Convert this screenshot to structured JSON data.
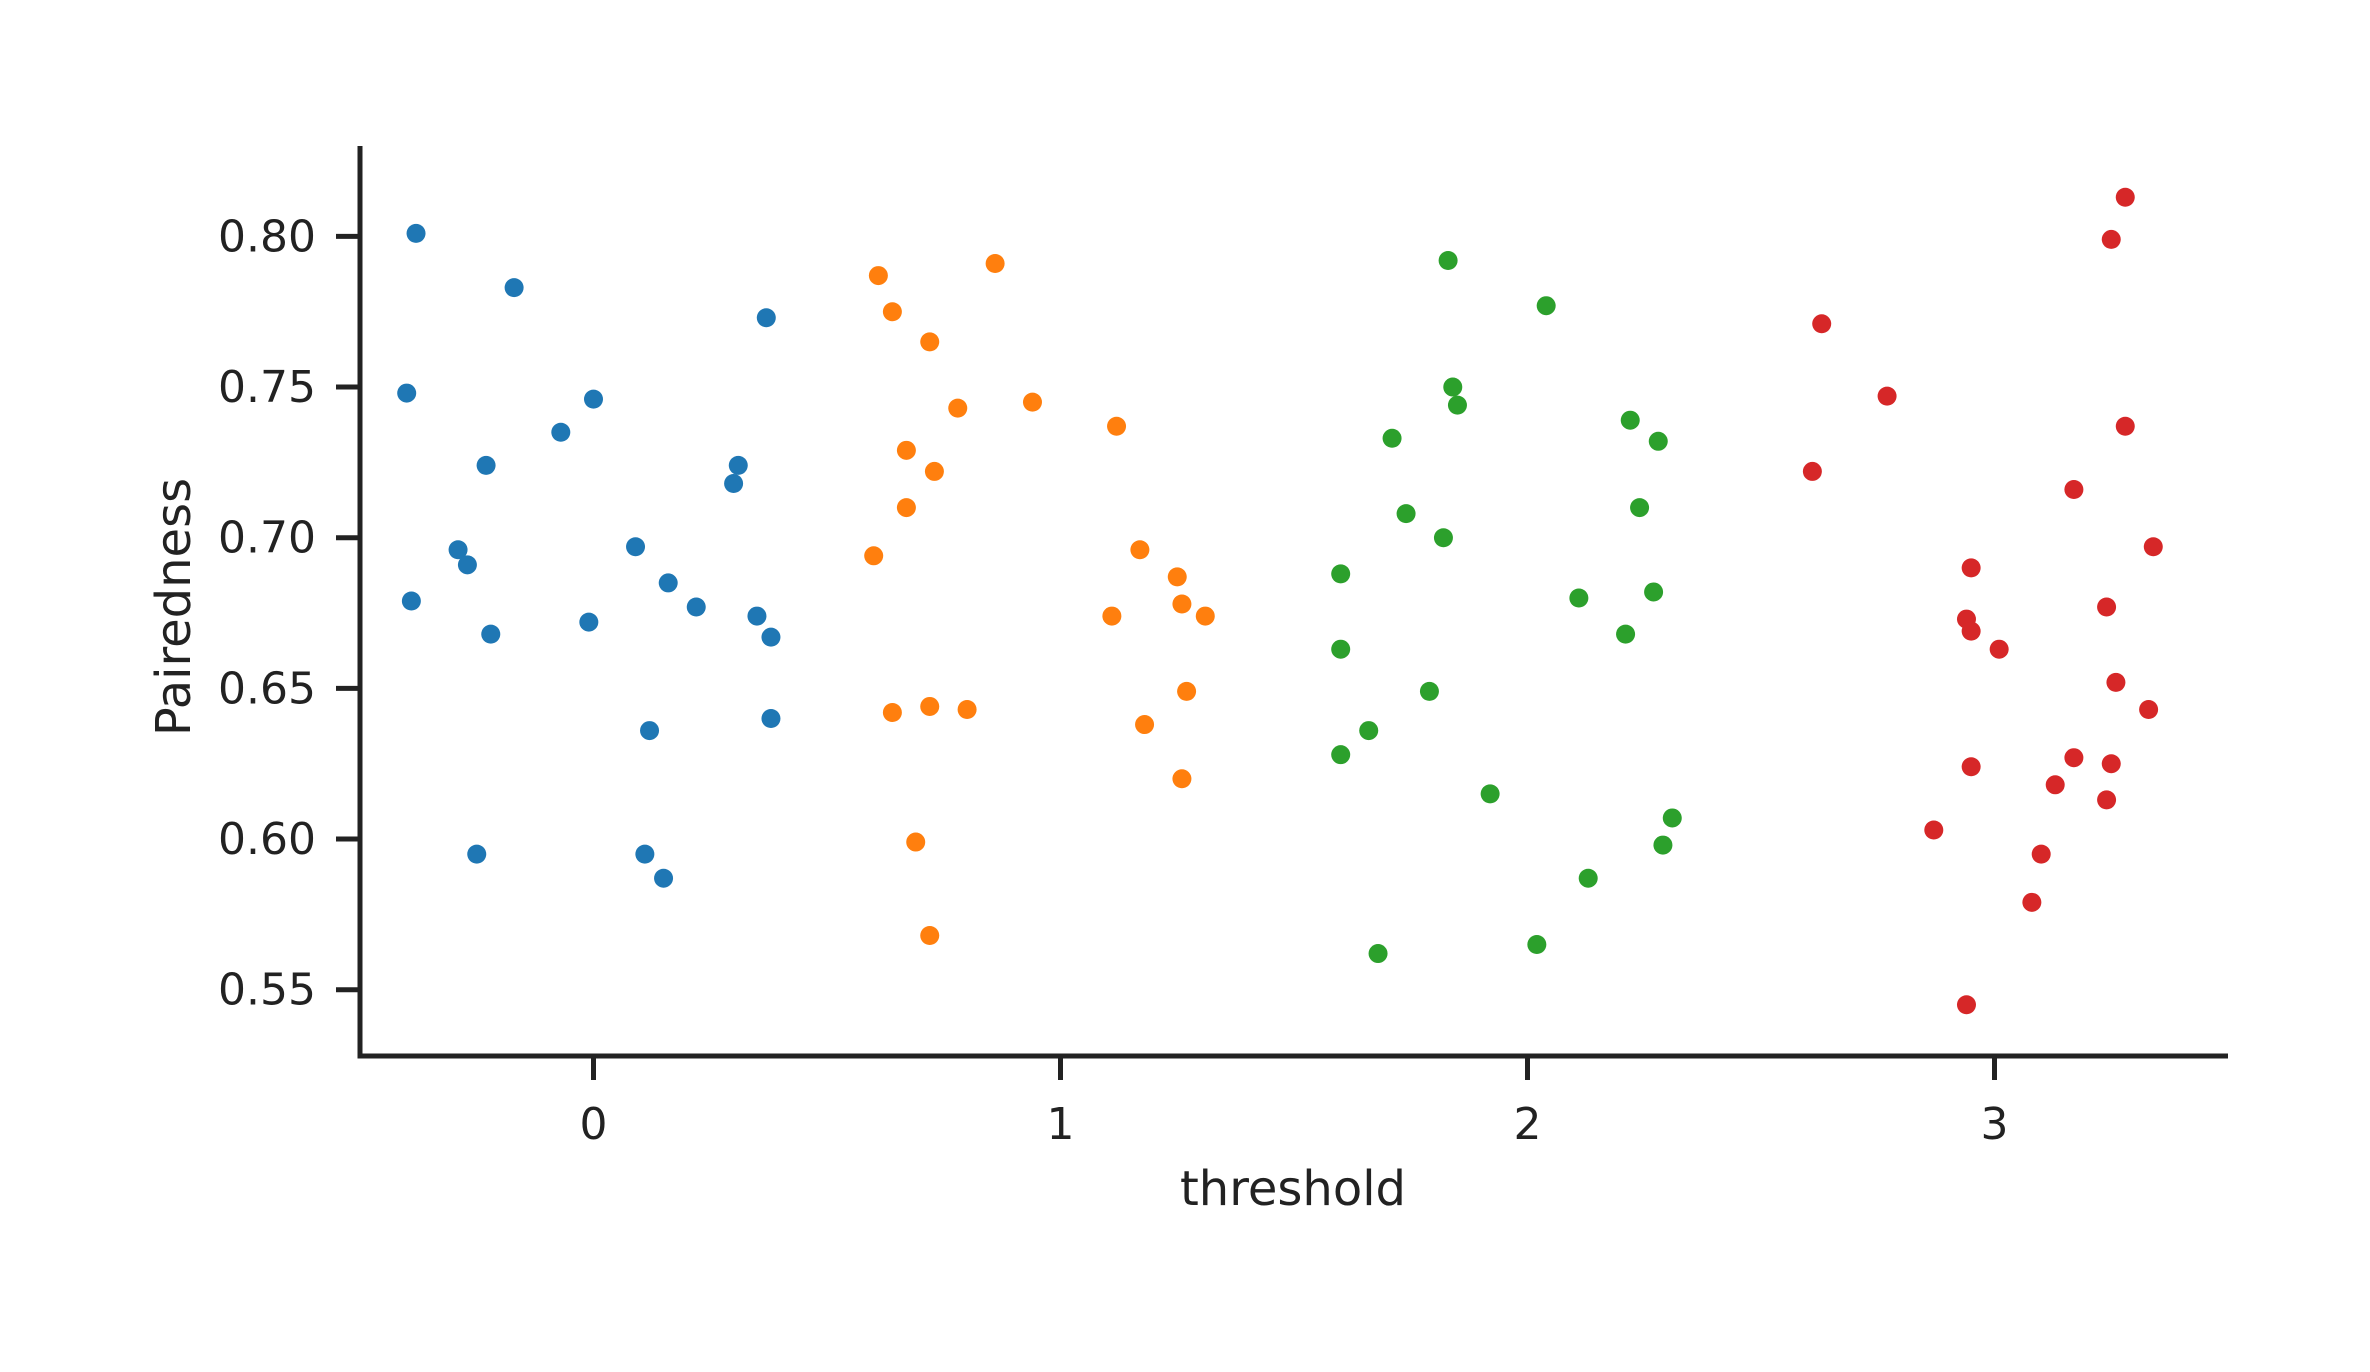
{
  "chart_data": {
    "type": "scatter",
    "title": "",
    "xlabel": "threshold",
    "ylabel": "Pairedness",
    "xlim": [
      -0.5,
      3.5
    ],
    "ylim": [
      0.528,
      0.83
    ],
    "x_ticks": [
      0,
      1,
      2,
      3
    ],
    "x_tick_labels": [
      "0",
      "1",
      "2",
      "3"
    ],
    "y_ticks": [
      0.55,
      0.6,
      0.65,
      0.7,
      0.75,
      0.8
    ],
    "y_tick_labels": [
      "0.55",
      "0.60",
      "0.65",
      "0.70",
      "0.75",
      "0.80"
    ],
    "grid": false,
    "legend": "none",
    "series": [
      {
        "color": "#1f77b4",
        "points": [
          {
            "x": -0.38,
            "y": 0.801
          },
          {
            "x": -0.17,
            "y": 0.783
          },
          {
            "x": 0.37,
            "y": 0.773
          },
          {
            "x": -0.4,
            "y": 0.748
          },
          {
            "x": 0.0,
            "y": 0.746
          },
          {
            "x": -0.07,
            "y": 0.735
          },
          {
            "x": -0.23,
            "y": 0.724
          },
          {
            "x": 0.31,
            "y": 0.724
          },
          {
            "x": 0.3,
            "y": 0.718
          },
          {
            "x": -0.29,
            "y": 0.696
          },
          {
            "x": 0.09,
            "y": 0.697
          },
          {
            "x": -0.27,
            "y": 0.691
          },
          {
            "x": 0.16,
            "y": 0.685
          },
          {
            "x": -0.39,
            "y": 0.679
          },
          {
            "x": 0.22,
            "y": 0.677
          },
          {
            "x": 0.35,
            "y": 0.674
          },
          {
            "x": -0.01,
            "y": 0.672
          },
          {
            "x": -0.22,
            "y": 0.668
          },
          {
            "x": 0.38,
            "y": 0.667
          },
          {
            "x": 0.38,
            "y": 0.64
          },
          {
            "x": 0.12,
            "y": 0.636
          },
          {
            "x": -0.25,
            "y": 0.595
          },
          {
            "x": 0.11,
            "y": 0.595
          },
          {
            "x": 0.15,
            "y": 0.587
          }
        ]
      },
      {
        "color": "#ff7f0e",
        "points": [
          {
            "x": 0.61,
            "y": 0.787
          },
          {
            "x": 0.86,
            "y": 0.791
          },
          {
            "x": 0.64,
            "y": 0.775
          },
          {
            "x": 0.72,
            "y": 0.765
          },
          {
            "x": 0.94,
            "y": 0.745
          },
          {
            "x": 0.78,
            "y": 0.743
          },
          {
            "x": 1.12,
            "y": 0.737
          },
          {
            "x": 0.67,
            "y": 0.729
          },
          {
            "x": 0.73,
            "y": 0.722
          },
          {
            "x": 0.67,
            "y": 0.71
          },
          {
            "x": 1.17,
            "y": 0.696
          },
          {
            "x": 0.6,
            "y": 0.694
          },
          {
            "x": 1.25,
            "y": 0.687
          },
          {
            "x": 1.26,
            "y": 0.678
          },
          {
            "x": 1.11,
            "y": 0.674
          },
          {
            "x": 1.31,
            "y": 0.674
          },
          {
            "x": 1.27,
            "y": 0.649
          },
          {
            "x": 0.72,
            "y": 0.644
          },
          {
            "x": 0.8,
            "y": 0.643
          },
          {
            "x": 0.64,
            "y": 0.642
          },
          {
            "x": 1.18,
            "y": 0.638
          },
          {
            "x": 1.26,
            "y": 0.62
          },
          {
            "x": 0.69,
            "y": 0.599
          },
          {
            "x": 0.72,
            "y": 0.568
          }
        ]
      },
      {
        "color": "#2ca02c",
        "points": [
          {
            "x": 1.83,
            "y": 0.792
          },
          {
            "x": 2.04,
            "y": 0.777
          },
          {
            "x": 1.84,
            "y": 0.75
          },
          {
            "x": 1.85,
            "y": 0.744
          },
          {
            "x": 2.22,
            "y": 0.739
          },
          {
            "x": 1.71,
            "y": 0.733
          },
          {
            "x": 2.28,
            "y": 0.732
          },
          {
            "x": 2.24,
            "y": 0.71
          },
          {
            "x": 1.74,
            "y": 0.708
          },
          {
            "x": 1.82,
            "y": 0.7
          },
          {
            "x": 1.6,
            "y": 0.688
          },
          {
            "x": 2.27,
            "y": 0.682
          },
          {
            "x": 2.11,
            "y": 0.68
          },
          {
            "x": 2.21,
            "y": 0.668
          },
          {
            "x": 1.6,
            "y": 0.663
          },
          {
            "x": 1.79,
            "y": 0.649
          },
          {
            "x": 1.66,
            "y": 0.636
          },
          {
            "x": 1.6,
            "y": 0.628
          },
          {
            "x": 1.92,
            "y": 0.615
          },
          {
            "x": 2.31,
            "y": 0.607
          },
          {
            "x": 2.29,
            "y": 0.598
          },
          {
            "x": 2.13,
            "y": 0.587
          },
          {
            "x": 2.02,
            "y": 0.565
          },
          {
            "x": 1.68,
            "y": 0.562
          }
        ]
      },
      {
        "color": "#d62728",
        "points": [
          {
            "x": 3.28,
            "y": 0.813
          },
          {
            "x": 3.25,
            "y": 0.799
          },
          {
            "x": 2.63,
            "y": 0.771
          },
          {
            "x": 2.77,
            "y": 0.747
          },
          {
            "x": 3.28,
            "y": 0.737
          },
          {
            "x": 2.61,
            "y": 0.722
          },
          {
            "x": 3.17,
            "y": 0.716
          },
          {
            "x": 3.34,
            "y": 0.697
          },
          {
            "x": 2.95,
            "y": 0.69
          },
          {
            "x": 3.24,
            "y": 0.677
          },
          {
            "x": 2.94,
            "y": 0.673
          },
          {
            "x": 2.95,
            "y": 0.669
          },
          {
            "x": 3.01,
            "y": 0.663
          },
          {
            "x": 3.26,
            "y": 0.652
          },
          {
            "x": 3.33,
            "y": 0.643
          },
          {
            "x": 3.17,
            "y": 0.627
          },
          {
            "x": 3.25,
            "y": 0.625
          },
          {
            "x": 2.95,
            "y": 0.624
          },
          {
            "x": 3.13,
            "y": 0.618
          },
          {
            "x": 3.24,
            "y": 0.613
          },
          {
            "x": 2.87,
            "y": 0.603
          },
          {
            "x": 3.1,
            "y": 0.595
          },
          {
            "x": 3.08,
            "y": 0.579
          },
          {
            "x": 2.94,
            "y": 0.545
          }
        ]
      }
    ]
  }
}
